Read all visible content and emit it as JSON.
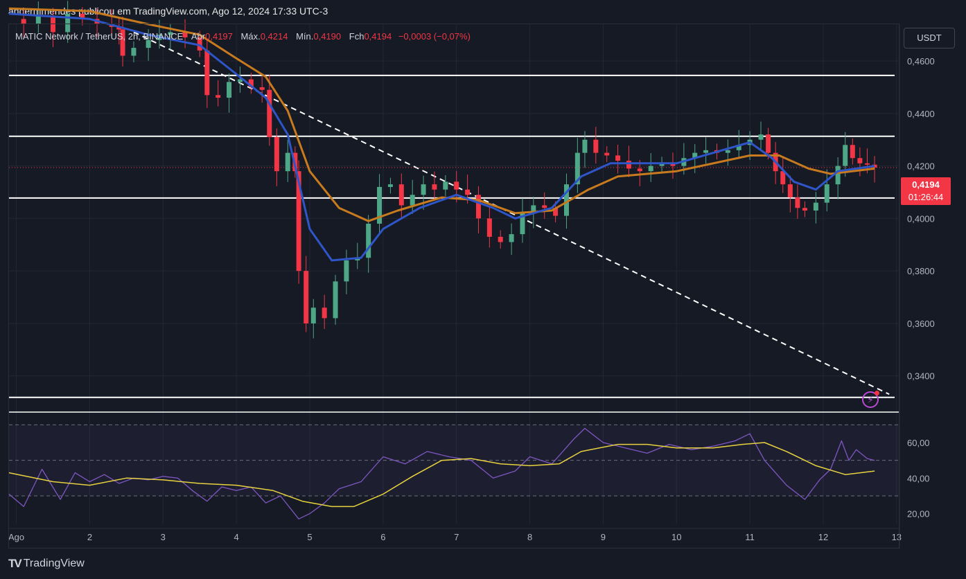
{
  "header": {
    "publisher_line": "andermmendes publicou em TradingView.com, Ago 12, 2024 17:33 UTC-3"
  },
  "legend": {
    "symbol": "MATIC Network / TetherUS, 2h, BINANCE",
    "open_label": "Abr",
    "open": "0,4197",
    "high_label": "Máx.",
    "high": "0,4214",
    "low_label": "Mín.",
    "low": "0,4190",
    "close_label": "Fch",
    "close": "0,4194",
    "change": "−0,0003 (−0,07%)"
  },
  "currency_button": "USDT",
  "current_price": {
    "price": "0,4194",
    "countdown": "01:26:44"
  },
  "branding": {
    "logo": "TV",
    "name": "TradingView"
  },
  "colors": {
    "up": "#4ea887",
    "down": "#f23645",
    "ema_fast": "#2f56c8",
    "ema_slow": "#c87b1e",
    "rsi": "#7e57c2",
    "rsi_ma": "#e8d33f",
    "background": "#161a25"
  },
  "chart_data": {
    "type": "candlestick",
    "symbol": "MATICUSDT",
    "interval": "2h",
    "price_axis": {
      "ylim": [
        0.327,
        0.474
      ],
      "ticks": [
        "0,3400",
        "0,3600",
        "0,3800",
        "0,4000",
        "0,4200",
        "0,4400",
        "0,4600"
      ],
      "tick_values": [
        0.34,
        0.36,
        0.38,
        0.4,
        0.42,
        0.44,
        0.46
      ]
    },
    "time_axis": {
      "xlim": [
        0.9,
        13.03
      ],
      "ticks": [
        {
          "v": 1,
          "label": "Ago"
        },
        {
          "v": 2,
          "label": "2"
        },
        {
          "v": 3,
          "label": "3"
        },
        {
          "v": 4,
          "label": "4"
        },
        {
          "v": 5,
          "label": "5"
        },
        {
          "v": 6,
          "label": "6"
        },
        {
          "v": 7,
          "label": "7"
        },
        {
          "v": 8,
          "label": "8"
        },
        {
          "v": 9,
          "label": "9"
        },
        {
          "v": 10,
          "label": "10"
        },
        {
          "v": 11,
          "label": "11"
        },
        {
          "v": 12,
          "label": "12"
        },
        {
          "v": 13,
          "label": "13"
        }
      ]
    },
    "horizontal_levels": [
      0.4545,
      0.4313,
      0.4078,
      0.3318
    ],
    "trendline": {
      "from": [
        2.6,
        0.471
      ],
      "to": [
        12.9,
        0.333
      ]
    },
    "price_line": 0.4194,
    "ohlc_close_path": [
      [
        0.9,
        0.476
      ],
      [
        1.1,
        0.474
      ],
      [
        1.3,
        0.477
      ],
      [
        1.5,
        0.471
      ],
      [
        1.7,
        0.478
      ],
      [
        1.9,
        0.476
      ],
      [
        2.1,
        0.474
      ],
      [
        2.3,
        0.473
      ],
      [
        2.4,
        0.472
      ],
      [
        2.45,
        0.462
      ],
      [
        2.6,
        0.465
      ],
      [
        2.8,
        0.468
      ],
      [
        2.95,
        0.47
      ],
      [
        3.1,
        0.471
      ],
      [
        3.3,
        0.469
      ],
      [
        3.5,
        0.464
      ],
      [
        3.6,
        0.447
      ],
      [
        3.75,
        0.446
      ],
      [
        3.9,
        0.452
      ],
      [
        4.05,
        0.453
      ],
      [
        4.2,
        0.45
      ],
      [
        4.35,
        0.449
      ],
      [
        4.45,
        0.431
      ],
      [
        4.55,
        0.418
      ],
      [
        4.7,
        0.425
      ],
      [
        4.8,
        0.418
      ],
      [
        4.85,
        0.38
      ],
      [
        4.95,
        0.36
      ],
      [
        5.05,
        0.366
      ],
      [
        5.2,
        0.362
      ],
      [
        5.35,
        0.376
      ],
      [
        5.5,
        0.384
      ],
      [
        5.65,
        0.385
      ],
      [
        5.8,
        0.398
      ],
      [
        5.95,
        0.412
      ],
      [
        6.1,
        0.413
      ],
      [
        6.25,
        0.405
      ],
      [
        6.4,
        0.409
      ],
      [
        6.55,
        0.413
      ],
      [
        6.7,
        0.411
      ],
      [
        6.85,
        0.414
      ],
      [
        7.0,
        0.411
      ],
      [
        7.15,
        0.409
      ],
      [
        7.3,
        0.4
      ],
      [
        7.45,
        0.393
      ],
      [
        7.6,
        0.391
      ],
      [
        7.75,
        0.394
      ],
      [
        7.9,
        0.402
      ],
      [
        8.05,
        0.405
      ],
      [
        8.2,
        0.404
      ],
      [
        8.35,
        0.401
      ],
      [
        8.5,
        0.413
      ],
      [
        8.65,
        0.425
      ],
      [
        8.75,
        0.43
      ],
      [
        8.9,
        0.425
      ],
      [
        9.05,
        0.424
      ],
      [
        9.2,
        0.422
      ],
      [
        9.35,
        0.419
      ],
      [
        9.5,
        0.418
      ],
      [
        9.65,
        0.42
      ],
      [
        9.8,
        0.421
      ],
      [
        9.95,
        0.42
      ],
      [
        10.1,
        0.423
      ],
      [
        10.25,
        0.425
      ],
      [
        10.4,
        0.426
      ],
      [
        10.55,
        0.425
      ],
      [
        10.7,
        0.426
      ],
      [
        10.85,
        0.428
      ],
      [
        11.0,
        0.43
      ],
      [
        11.15,
        0.432
      ],
      [
        11.25,
        0.425
      ],
      [
        11.35,
        0.418
      ],
      [
        11.45,
        0.413
      ],
      [
        11.55,
        0.408
      ],
      [
        11.65,
        0.404
      ],
      [
        11.75,
        0.403
      ],
      [
        11.9,
        0.406
      ],
      [
        12.05,
        0.413
      ],
      [
        12.2,
        0.42
      ],
      [
        12.3,
        0.428
      ],
      [
        12.4,
        0.423
      ],
      [
        12.5,
        0.421
      ],
      [
        12.6,
        0.4205
      ],
      [
        12.7,
        0.4194
      ]
    ],
    "ema_fast": [
      [
        0.9,
        0.478
      ],
      [
        2.0,
        0.476
      ],
      [
        2.8,
        0.47
      ],
      [
        3.5,
        0.466
      ],
      [
        4.0,
        0.455
      ],
      [
        4.4,
        0.446
      ],
      [
        4.7,
        0.432
      ],
      [
        5.0,
        0.396
      ],
      [
        5.3,
        0.384
      ],
      [
        5.7,
        0.385
      ],
      [
        6.0,
        0.396
      ],
      [
        6.5,
        0.404
      ],
      [
        7.0,
        0.409
      ],
      [
        7.5,
        0.404
      ],
      [
        7.8,
        0.4
      ],
      [
        8.3,
        0.404
      ],
      [
        8.7,
        0.416
      ],
      [
        9.1,
        0.421
      ],
      [
        10.0,
        0.421
      ],
      [
        11.0,
        0.429
      ],
      [
        11.3,
        0.423
      ],
      [
        11.6,
        0.414
      ],
      [
        11.9,
        0.411
      ],
      [
        12.2,
        0.418
      ],
      [
        12.7,
        0.42
      ]
    ],
    "ema_slow": [
      [
        0.9,
        0.48
      ],
      [
        2.0,
        0.479
      ],
      [
        2.8,
        0.474
      ],
      [
        3.5,
        0.47
      ],
      [
        4.0,
        0.461
      ],
      [
        4.4,
        0.454
      ],
      [
        4.7,
        0.441
      ],
      [
        5.0,
        0.418
      ],
      [
        5.4,
        0.404
      ],
      [
        5.8,
        0.399
      ],
      [
        6.2,
        0.403
      ],
      [
        6.8,
        0.408
      ],
      [
        7.3,
        0.407
      ],
      [
        7.8,
        0.402
      ],
      [
        8.3,
        0.403
      ],
      [
        8.8,
        0.411
      ],
      [
        9.2,
        0.416
      ],
      [
        10.0,
        0.418
      ],
      [
        11.0,
        0.424
      ],
      [
        11.4,
        0.424
      ],
      [
        11.8,
        0.419
      ],
      [
        12.1,
        0.417
      ],
      [
        12.7,
        0.419
      ]
    ],
    "rsi": {
      "ylim": [
        14,
        76
      ],
      "ticks": [
        "20,00",
        "40,00",
        "60,00"
      ],
      "tick_values": [
        20,
        40,
        60
      ],
      "bands": [
        30,
        50,
        70
      ],
      "series": [
        [
          0.9,
          31
        ],
        [
          1.1,
          24
        ],
        [
          1.35,
          45
        ],
        [
          1.6,
          28
        ],
        [
          1.8,
          43
        ],
        [
          2.0,
          38
        ],
        [
          2.2,
          42
        ],
        [
          2.4,
          37
        ],
        [
          2.6,
          40
        ],
        [
          2.8,
          39
        ],
        [
          3.0,
          41
        ],
        [
          3.2,
          40
        ],
        [
          3.4,
          33
        ],
        [
          3.6,
          27
        ],
        [
          3.8,
          35
        ],
        [
          4.0,
          33
        ],
        [
          4.2,
          35
        ],
        [
          4.4,
          26
        ],
        [
          4.6,
          30
        ],
        [
          4.85,
          17
        ],
        [
          5.0,
          20
        ],
        [
          5.2,
          26
        ],
        [
          5.4,
          34
        ],
        [
          5.7,
          38
        ],
        [
          6.0,
          52
        ],
        [
          6.3,
          48
        ],
        [
          6.6,
          55
        ],
        [
          6.9,
          52
        ],
        [
          7.2,
          50
        ],
        [
          7.5,
          40
        ],
        [
          7.8,
          44
        ],
        [
          8.0,
          52
        ],
        [
          8.3,
          48
        ],
        [
          8.6,
          62
        ],
        [
          8.75,
          68
        ],
        [
          9.0,
          60
        ],
        [
          9.3,
          57
        ],
        [
          9.6,
          54
        ],
        [
          9.9,
          59
        ],
        [
          10.2,
          56
        ],
        [
          10.5,
          58
        ],
        [
          10.8,
          61
        ],
        [
          11.0,
          65
        ],
        [
          11.2,
          50
        ],
        [
          11.5,
          36
        ],
        [
          11.75,
          28
        ],
        [
          11.95,
          39
        ],
        [
          12.1,
          45
        ],
        [
          12.25,
          61
        ],
        [
          12.35,
          50
        ],
        [
          12.45,
          56
        ],
        [
          12.6,
          51
        ],
        [
          12.7,
          50
        ]
      ],
      "ma": [
        [
          0.9,
          43
        ],
        [
          1.5,
          38
        ],
        [
          2.0,
          36
        ],
        [
          2.5,
          40
        ],
        [
          3.0,
          39
        ],
        [
          3.5,
          37
        ],
        [
          4.0,
          36
        ],
        [
          4.5,
          33
        ],
        [
          4.9,
          27
        ],
        [
          5.3,
          24
        ],
        [
          5.6,
          24
        ],
        [
          6.0,
          31
        ],
        [
          6.4,
          41
        ],
        [
          6.8,
          50
        ],
        [
          7.2,
          51
        ],
        [
          7.6,
          48
        ],
        [
          8.0,
          47
        ],
        [
          8.4,
          48
        ],
        [
          8.7,
          55
        ],
        [
          9.2,
          59
        ],
        [
          9.6,
          59
        ],
        [
          10.0,
          57
        ],
        [
          10.5,
          57
        ],
        [
          10.9,
          59
        ],
        [
          11.2,
          60
        ],
        [
          11.5,
          55
        ],
        [
          11.9,
          47
        ],
        [
          12.3,
          42
        ],
        [
          12.7,
          44
        ]
      ]
    }
  }
}
